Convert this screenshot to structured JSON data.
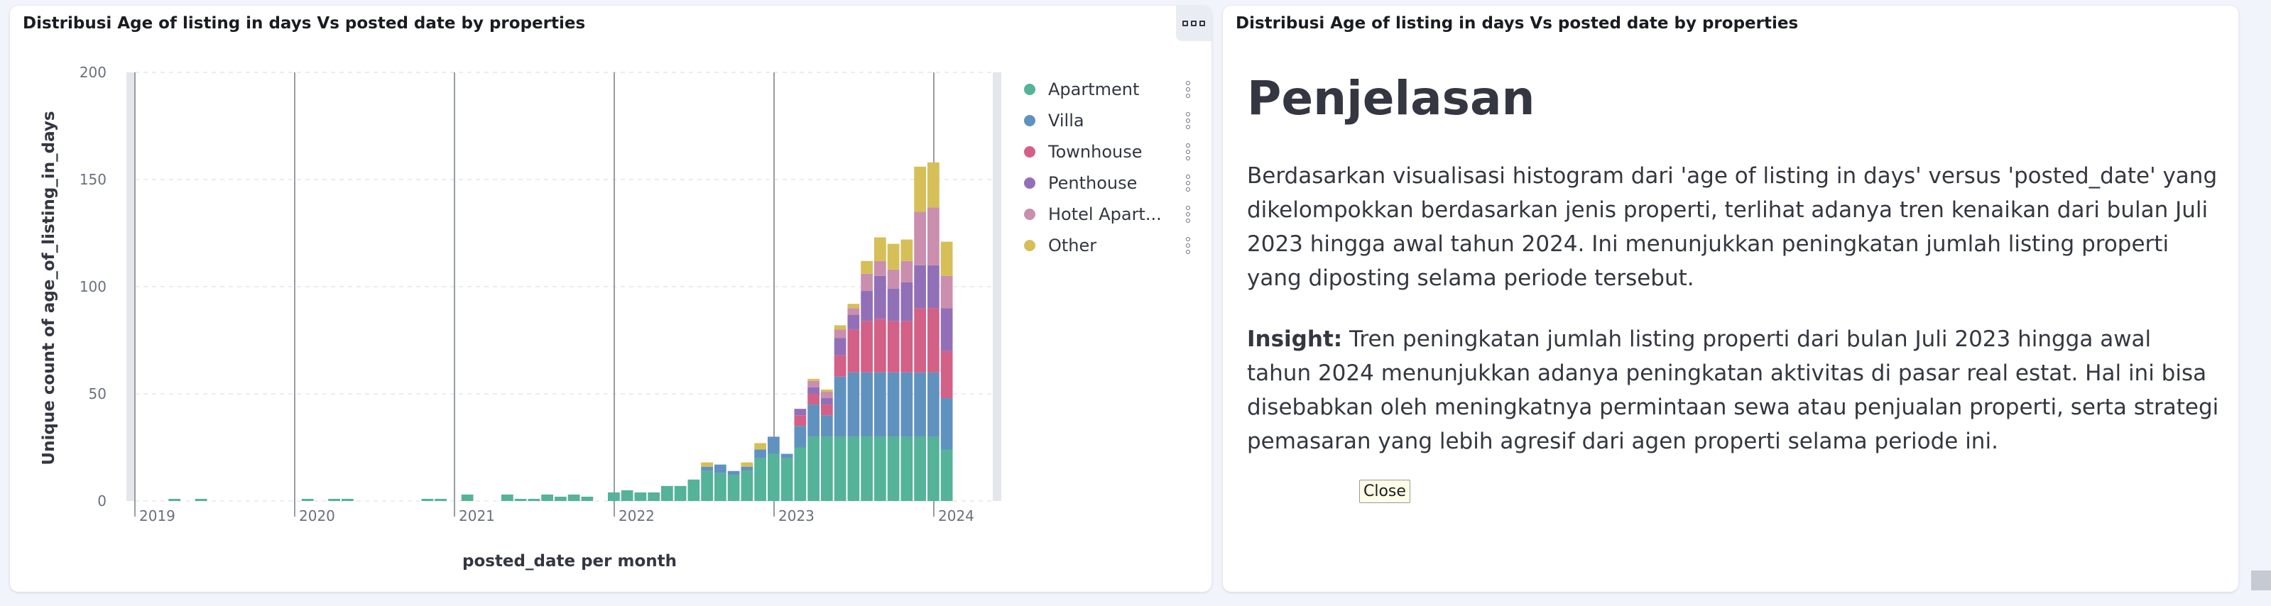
{
  "panels": {
    "left": {
      "title": "Distribusi Age of listing in days Vs posted date by properties"
    },
    "right": {
      "title": "Distribusi Age of listing in days Vs posted date by properties"
    }
  },
  "markdown": {
    "heading": "Penjelasan",
    "paragraph1": "Berdasarkan visualisasi histogram dari 'age of listing in days' versus 'posted_date' yang dikelompokkan berdasarkan jenis properti, terlihat adanya tren kenaikan dari bulan Juli 2023 hingga awal tahun 2024. Ini menunjukkan peningkatan jumlah listing properti yang diposting selama periode tersebut.",
    "insight_label": "Insight:",
    "insight_text": " Tren peningkatan jumlah listing properti dari bulan Juli 2023 hingga awal tahun 2024 menunjukkan adanya peningkatan aktivitas di pasar real estat. Hal ini bisa disebabkan oleh meningkatnya permintaan sewa atau penjualan properti, serta strategi pemasaran yang lebih agresif dari agen properti selama periode ini.",
    "close_label": "Close"
  },
  "chart_data": {
    "type": "bar",
    "stacked": true,
    "xlabel": "posted_date per month",
    "ylabel": "Unique count of age_of_listing_in_days",
    "ylim": [
      0,
      200
    ],
    "y_ticks": [
      0,
      50,
      100,
      150,
      200
    ],
    "x_ticks": [
      "2019",
      "2020",
      "2021",
      "2022",
      "2023",
      "2024"
    ],
    "x_start": "2019-01",
    "grid": true,
    "legend_position": "right",
    "series": [
      {
        "name": "Apartment",
        "color": "#54b399"
      },
      {
        "name": "Villa",
        "color": "#6092c0"
      },
      {
        "name": "Townhouse",
        "color": "#d36086"
      },
      {
        "name": "Penthouse",
        "color": "#9170b8"
      },
      {
        "name": "Hotel Apart...",
        "color": "#ca8eae"
      },
      {
        "name": "Other",
        "color": "#d6bf57"
      }
    ],
    "bars": [
      {
        "month": "2019-04",
        "values": [
          1,
          0,
          0,
          0,
          0,
          0
        ]
      },
      {
        "month": "2019-06",
        "values": [
          1,
          0,
          0,
          0,
          0,
          0
        ]
      },
      {
        "month": "2020-02",
        "values": [
          1,
          0,
          0,
          0,
          0,
          0
        ]
      },
      {
        "month": "2020-04",
        "values": [
          1,
          0,
          0,
          0,
          0,
          0
        ]
      },
      {
        "month": "2020-05",
        "values": [
          1,
          0,
          0,
          0,
          0,
          0
        ]
      },
      {
        "month": "2020-11",
        "values": [
          1,
          0,
          0,
          0,
          0,
          0
        ]
      },
      {
        "month": "2020-12",
        "values": [
          1,
          0,
          0,
          0,
          0,
          0
        ]
      },
      {
        "month": "2021-02",
        "values": [
          3,
          0,
          0,
          0,
          0,
          0
        ]
      },
      {
        "month": "2021-05",
        "values": [
          3,
          0,
          0,
          0,
          0,
          0
        ]
      },
      {
        "month": "2021-06",
        "values": [
          1,
          0,
          0,
          0,
          0,
          0
        ]
      },
      {
        "month": "2021-07",
        "values": [
          1,
          0,
          0,
          0,
          0,
          0
        ]
      },
      {
        "month": "2021-08",
        "values": [
          3,
          0,
          0,
          0,
          0,
          0
        ]
      },
      {
        "month": "2021-09",
        "values": [
          2,
          0,
          0,
          0,
          0,
          0
        ]
      },
      {
        "month": "2021-10",
        "values": [
          3,
          0,
          0,
          0,
          0,
          0
        ]
      },
      {
        "month": "2021-11",
        "values": [
          2,
          0,
          0,
          0,
          0,
          0
        ]
      },
      {
        "month": "2022-01",
        "values": [
          4,
          0,
          0,
          0,
          0,
          0
        ]
      },
      {
        "month": "2022-02",
        "values": [
          5,
          0,
          0,
          0,
          0,
          0
        ]
      },
      {
        "month": "2022-03",
        "values": [
          4,
          0,
          0,
          0,
          0,
          0
        ]
      },
      {
        "month": "2022-04",
        "values": [
          4,
          0,
          0,
          0,
          0,
          0
        ]
      },
      {
        "month": "2022-05",
        "values": [
          7,
          0,
          0,
          0,
          0,
          0
        ]
      },
      {
        "month": "2022-06",
        "values": [
          7,
          0,
          0,
          0,
          0,
          0
        ]
      },
      {
        "month": "2022-07",
        "values": [
          10,
          0,
          0,
          0,
          0,
          0
        ]
      },
      {
        "month": "2022-08",
        "values": [
          14,
          2,
          0,
          0,
          0,
          2
        ]
      },
      {
        "month": "2022-09",
        "values": [
          13,
          4,
          0,
          0,
          0,
          0
        ]
      },
      {
        "month": "2022-10",
        "values": [
          12,
          2,
          0,
          0,
          0,
          0
        ]
      },
      {
        "month": "2022-11",
        "values": [
          14,
          2,
          0,
          0,
          0,
          2
        ]
      },
      {
        "month": "2022-12",
        "values": [
          20,
          4,
          0,
          0,
          0,
          3
        ]
      },
      {
        "month": "2023-01",
        "values": [
          22,
          8,
          0,
          0,
          0,
          0
        ]
      },
      {
        "month": "2023-02",
        "values": [
          20,
          2,
          0,
          0,
          0,
          0
        ]
      },
      {
        "month": "2023-03",
        "values": [
          25,
          10,
          5,
          3,
          0,
          0
        ]
      },
      {
        "month": "2023-04",
        "values": [
          30,
          15,
          5,
          3,
          3,
          1
        ]
      },
      {
        "month": "2023-05",
        "values": [
          30,
          10,
          5,
          3,
          3,
          1
        ]
      },
      {
        "month": "2023-06",
        "values": [
          30,
          28,
          10,
          8,
          4,
          2
        ]
      },
      {
        "month": "2023-07",
        "values": [
          30,
          30,
          20,
          7,
          3,
          2
        ]
      },
      {
        "month": "2023-08",
        "values": [
          30,
          30,
          24,
          14,
          8,
          6
        ]
      },
      {
        "month": "2023-09",
        "values": [
          30,
          30,
          25,
          20,
          7,
          11
        ]
      },
      {
        "month": "2023-10",
        "values": [
          30,
          30,
          24,
          15,
          9,
          12
        ]
      },
      {
        "month": "2023-11",
        "values": [
          30,
          30,
          24,
          18,
          10,
          10
        ]
      },
      {
        "month": "2023-12",
        "values": [
          30,
          30,
          30,
          20,
          25,
          21
        ]
      },
      {
        "month": "2024-01",
        "values": [
          30,
          30,
          30,
          20,
          27,
          21
        ]
      },
      {
        "month": "2024-02",
        "values": [
          24,
          24,
          22,
          20,
          15,
          16
        ]
      }
    ]
  }
}
